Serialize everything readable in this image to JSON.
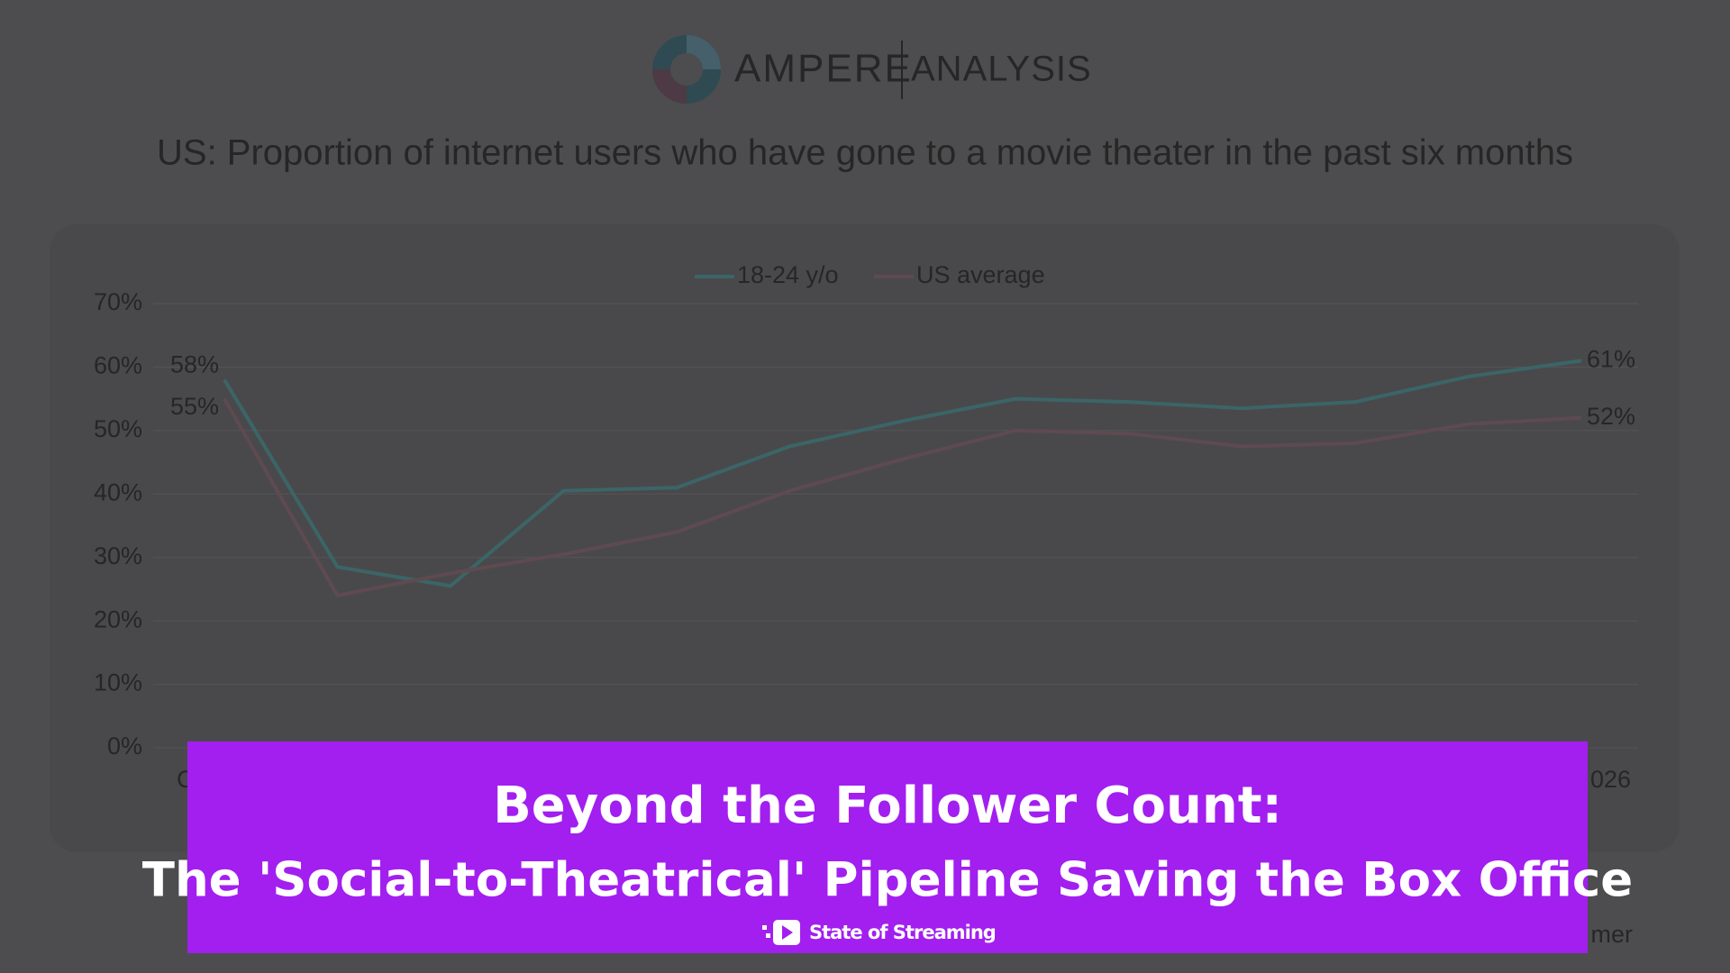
{
  "logo": {
    "brand": "AMPERE",
    "suffix": "ANALYSIS"
  },
  "chart_data": {
    "type": "line",
    "title": "US: Proportion of internet users who have gone to a movie theater in the past six months",
    "categories": [
      "C",
      null,
      null,
      null,
      null,
      null,
      null,
      null,
      null,
      null,
      null,
      null,
      "026"
    ],
    "series": [
      {
        "name": "18-24 y/o",
        "color": "#3b6567",
        "values": [
          58,
          28.5,
          25.5,
          40.5,
          41,
          47.5,
          51.5,
          55,
          54.5,
          53.5,
          54.5,
          58.5,
          61
        ],
        "value_labels": [
          "58%",
          null,
          null,
          null,
          null,
          null,
          null,
          null,
          null,
          null,
          null,
          null,
          "61%"
        ]
      },
      {
        "name": "US average",
        "color": "#5e4a50",
        "values": [
          55,
          24,
          27.5,
          30.5,
          34,
          40.5,
          45.5,
          50,
          49.5,
          47.5,
          48,
          51,
          52
        ],
        "value_labels": [
          "55%",
          null,
          null,
          null,
          null,
          null,
          null,
          null,
          null,
          null,
          null,
          null,
          "52%"
        ]
      }
    ],
    "ylim": [
      0,
      70
    ],
    "yticks": [
      {
        "value": 0,
        "label": "0%"
      },
      {
        "value": 10,
        "label": "10%"
      },
      {
        "value": 20,
        "label": "20%"
      },
      {
        "value": 30,
        "label": "30%"
      },
      {
        "value": 40,
        "label": "40%"
      },
      {
        "value": 50,
        "label": "50%"
      },
      {
        "value": 60,
        "label": "60%"
      },
      {
        "value": 70,
        "label": "70%"
      }
    ],
    "grid": true,
    "legend": "top",
    "footnote": "mer"
  },
  "banner": {
    "line1": "Beyond the Follower Count:",
    "line2": "The 'Social-to-Theatrical' Pipeline Saving the Box Office",
    "brand": "State of Streaming"
  }
}
